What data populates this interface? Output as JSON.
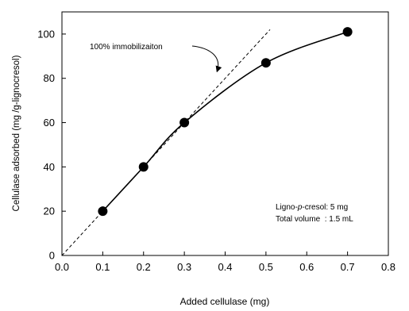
{
  "chart_data": {
    "type": "scatter",
    "xlabel": "Added cellulase (mg)",
    "ylabel": "Cellulase adsorbed (mg /g-lignocresol)",
    "xlim": [
      0.0,
      0.8
    ],
    "ylim": [
      0,
      110
    ],
    "xticks": [
      "0.0",
      "0.1",
      "0.2",
      "0.3",
      "0.4",
      "0.5",
      "0.6",
      "0.7",
      "0.8"
    ],
    "yticks": [
      "0",
      "20",
      "40",
      "60",
      "80",
      "100"
    ],
    "grid": false,
    "series": [
      {
        "x": [
          0.1,
          0.2,
          0.3,
          0.5,
          0.7
        ],
        "y": [
          20,
          40,
          60,
          87,
          101
        ]
      }
    ],
    "reference_line": {
      "x": [
        0.0,
        0.51
      ],
      "y": [
        0,
        102
      ],
      "style": "dashed"
    },
    "annotation": {
      "text": "100% immobilizaiton",
      "target": [
        0.38,
        83
      ]
    },
    "notes": [
      "Ligno-p-cresol: 5 mg",
      "Total volume  : 1.5 mL"
    ]
  }
}
